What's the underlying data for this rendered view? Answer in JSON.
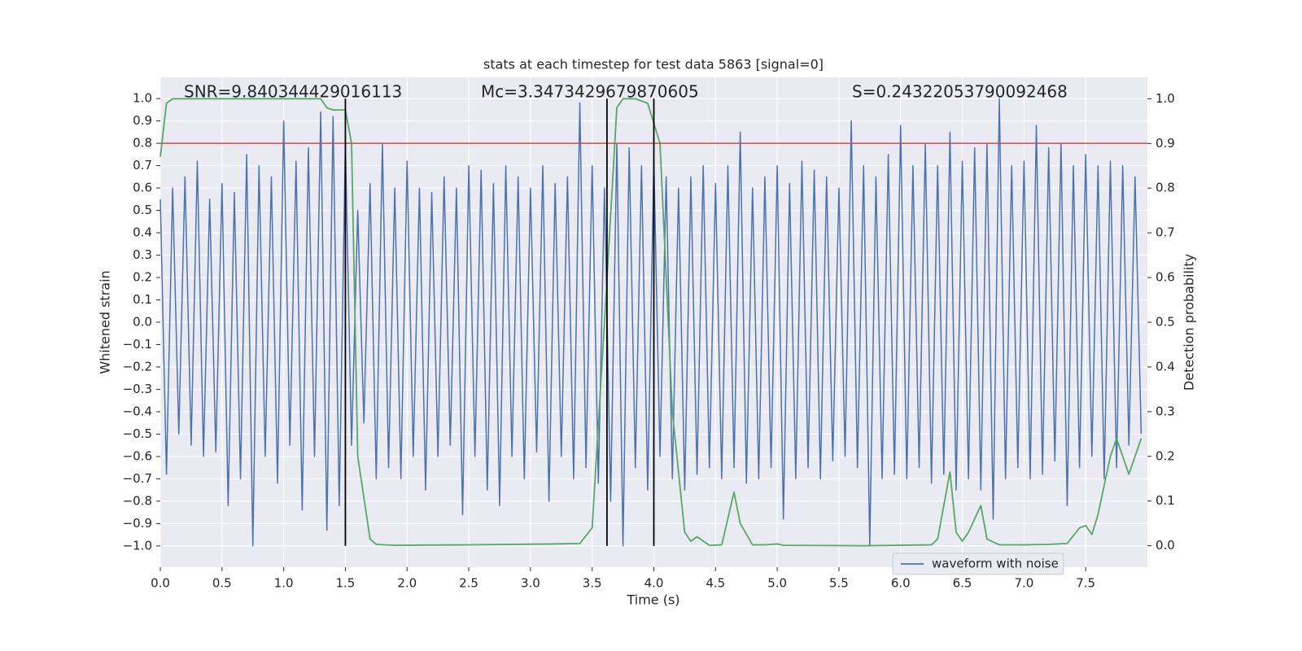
{
  "chart_data": {
    "type": "line",
    "title": "stats at each timestep for test data 5863 [signal=0]",
    "xlabel": "Time (s)",
    "ylabel": "Whitened strain",
    "y2label": "Detection probability",
    "annotations": [
      "SNR=9.840344429016113",
      "Mc=3.3473429679870605",
      "S=0.24322053790092468"
    ],
    "xlim": [
      0,
      8.0
    ],
    "ylim": [
      -1.095,
      1.095
    ],
    "y2lim": [
      -0.048,
      1.048
    ],
    "xticks": [
      {
        "value": 0,
        "label": "0.0"
      },
      0.5,
      {
        "value": 1,
        "label": "1.0"
      },
      1.5,
      {
        "value": 2,
        "label": "2.0"
      },
      2.5,
      {
        "value": 3,
        "label": "3.0"
      },
      3.5,
      {
        "value": 4,
        "label": "4.0"
      },
      4.5,
      {
        "value": 5,
        "label": "5.0"
      },
      5.5,
      {
        "value": 6,
        "label": "6.0"
      },
      6.5,
      {
        "value": 7,
        "label": "7.0"
      },
      7.5
    ],
    "yticks": [
      {
        "value": -1,
        "label": "−1.0"
      },
      {
        "value": -0.9,
        "label": "−0.9"
      },
      {
        "value": -0.8,
        "label": "−0.8"
      },
      {
        "value": -0.7,
        "label": "−0.7"
      },
      {
        "value": -0.6,
        "label": "−0.6"
      },
      {
        "value": -0.5,
        "label": "−0.5"
      },
      {
        "value": -0.4,
        "label": "−0.4"
      },
      {
        "value": -0.3,
        "label": "−0.3"
      },
      {
        "value": -0.2,
        "label": "−0.2"
      },
      {
        "value": -0.1,
        "label": "−0.1"
      },
      {
        "value": 0,
        "label": "0.0"
      },
      0.1,
      0.2,
      0.3,
      0.4,
      0.5,
      0.6,
      0.7,
      0.8,
      0.9,
      {
        "value": 1,
        "label": "1.0"
      }
    ],
    "y2ticks": [
      {
        "value": 0,
        "label": "0.0"
      },
      0.1,
      0.2,
      0.3,
      0.4,
      0.5,
      0.6,
      0.7,
      0.8,
      0.9,
      {
        "value": 1,
        "label": "1.0"
      }
    ],
    "grid": true,
    "legend": "lower right",
    "series": [
      {
        "name": "waveform with noise",
        "color": "#4c72b0",
        "x": [
          0,
          0.05,
          0.1,
          0.15,
          0.2,
          0.25,
          0.3,
          0.35,
          0.4,
          0.45,
          0.5,
          0.55,
          0.6,
          0.65,
          0.7,
          0.75,
          0.8,
          0.85,
          0.9,
          0.95,
          1,
          1.05,
          1.1,
          1.15,
          1.2,
          1.25,
          1.3,
          1.35,
          1.4,
          1.45,
          1.5,
          1.55,
          1.6,
          1.65,
          1.7,
          1.75,
          1.8,
          1.85,
          1.9,
          1.95,
          2,
          2.05,
          2.1,
          2.15,
          2.2,
          2.25,
          2.3,
          2.35,
          2.4,
          2.45,
          2.5,
          2.55,
          2.6,
          2.65,
          2.7,
          2.75,
          2.8,
          2.85,
          2.9,
          2.95,
          3,
          3.05,
          3.1,
          3.15,
          3.2,
          3.25,
          3.3,
          3.35,
          3.4,
          3.45,
          3.5,
          3.55,
          3.6,
          3.65,
          3.7,
          3.75,
          3.8,
          3.85,
          3.9,
          3.95,
          4,
          4.05,
          4.1,
          4.15,
          4.2,
          4.25,
          4.3,
          4.35,
          4.4,
          4.45,
          4.5,
          4.55,
          4.6,
          4.65,
          4.7,
          4.75,
          4.8,
          4.85,
          4.9,
          4.95,
          5,
          5.05,
          5.1,
          5.15,
          5.2,
          5.25,
          5.3,
          5.35,
          5.4,
          5.45,
          5.5,
          5.55,
          5.6,
          5.65,
          5.7,
          5.75,
          5.8,
          5.85,
          5.9,
          5.95,
          6,
          6.05,
          6.1,
          6.15,
          6.2,
          6.25,
          6.3,
          6.35,
          6.4,
          6.45,
          6.5,
          6.55,
          6.6,
          6.65,
          6.7,
          6.75,
          6.8,
          6.85,
          6.9,
          6.95,
          7,
          7.05,
          7.1,
          7.15,
          7.2,
          7.25,
          7.3,
          7.35,
          7.4,
          7.45,
          7.5,
          7.55,
          7.6,
          7.65,
          7.7,
          7.75,
          7.8,
          7.85,
          7.9,
          7.95
        ],
        "values": [
          0.55,
          -0.68,
          0.6,
          -0.5,
          0.65,
          -0.55,
          0.72,
          -0.6,
          0.55,
          -0.58,
          0.62,
          -0.82,
          0.58,
          -0.7,
          0.75,
          -1.0,
          0.7,
          -0.6,
          0.65,
          -0.72,
          0.9,
          -0.55,
          0.72,
          -0.84,
          0.78,
          -0.6,
          0.94,
          -0.93,
          0.92,
          -0.82,
          0.8,
          -0.55,
          0.5,
          -0.45,
          0.62,
          -0.7,
          0.8,
          -0.65,
          0.6,
          -0.7,
          0.72,
          -0.6,
          0.6,
          -0.75,
          0.58,
          -0.6,
          0.65,
          -0.55,
          0.6,
          -0.86,
          0.7,
          -0.6,
          0.68,
          -0.75,
          0.62,
          -0.82,
          0.7,
          -0.6,
          0.65,
          -0.7,
          0.6,
          -0.58,
          0.7,
          -0.8,
          0.62,
          -0.6,
          0.65,
          -0.7,
          0.98,
          -0.65,
          0.7,
          -0.72,
          0.6,
          -0.8,
          0.8,
          -1.0,
          0.78,
          -0.65,
          0.7,
          -0.75,
          0.72,
          -0.6,
          0.65,
          -0.7,
          0.6,
          -0.75,
          0.65,
          -0.68,
          0.7,
          -0.65,
          0.62,
          -0.7,
          0.7,
          -0.65,
          0.85,
          -0.72,
          0.6,
          -0.7,
          0.65,
          -0.65,
          0.7,
          -0.88,
          0.62,
          -0.7,
          0.72,
          -0.65,
          0.68,
          -0.7,
          0.65,
          -0.62,
          0.6,
          -0.6,
          0.9,
          -0.65,
          0.7,
          -1.0,
          0.65,
          -0.7,
          0.75,
          -0.68,
          0.88,
          -0.7,
          0.7,
          -0.65,
          0.8,
          -0.72,
          0.7,
          -0.68,
          0.85,
          -0.75,
          0.72,
          -0.7,
          0.78,
          -0.75,
          0.8,
          -0.88,
          1.0,
          -0.7,
          0.7,
          -0.65,
          0.72,
          -0.7,
          0.88,
          -0.68,
          0.78,
          -0.62,
          0.8,
          -0.82,
          0.7,
          -0.65,
          0.75,
          -0.6,
          0.7,
          -0.7,
          0.72,
          -0.65,
          0.7,
          -0.55,
          0.65,
          -0.5
        ]
      },
      {
        "color": "#55a868",
        "axis": "y2",
        "x": [
          0,
          0.05,
          0.1,
          0.2,
          1.3,
          1.35,
          1.4,
          1.5,
          1.55,
          1.6,
          1.7,
          1.75,
          1.9,
          2.5,
          3.2,
          3.4,
          3.5,
          3.6,
          3.7,
          3.75,
          3.85,
          3.95,
          4.05,
          4.15,
          4.25,
          4.3,
          4.35,
          4.45,
          4.55,
          4.65,
          4.7,
          4.8,
          4.9,
          5.0,
          5.05,
          5.7,
          6.25,
          6.3,
          6.4,
          6.45,
          6.5,
          6.55,
          6.65,
          6.7,
          6.8,
          7.0,
          7.2,
          7.35,
          7.45,
          7.5,
          7.55,
          7.6,
          7.7,
          7.75,
          7.85,
          7.95
        ],
        "values": [
          0.87,
          0.99,
          1.0,
          1.0,
          1.0,
          0.98,
          0.975,
          0.975,
          0.9,
          0.2,
          0.015,
          0.003,
          0.001,
          0.002,
          0.004,
          0.005,
          0.04,
          0.5,
          0.98,
          1.0,
          1.0,
          0.99,
          0.9,
          0.3,
          0.03,
          0.01,
          0.02,
          0.001,
          0.002,
          0.12,
          0.05,
          0.002,
          0.002,
          0.004,
          0.001,
          0.0,
          0.002,
          0.015,
          0.165,
          0.03,
          0.01,
          0.03,
          0.09,
          0.015,
          0.002,
          0.002,
          0.003,
          0.005,
          0.04,
          0.045,
          0.025,
          0.07,
          0.2,
          0.24,
          0.16,
          0.24
        ]
      }
    ],
    "hlines": [
      {
        "y": 0.8,
        "color": "#c44e52"
      }
    ],
    "vlines": [
      1.5,
      3.62,
      4.0
    ],
    "vline_color": "#000000",
    "vline_span": [
      -1,
      1
    ]
  }
}
